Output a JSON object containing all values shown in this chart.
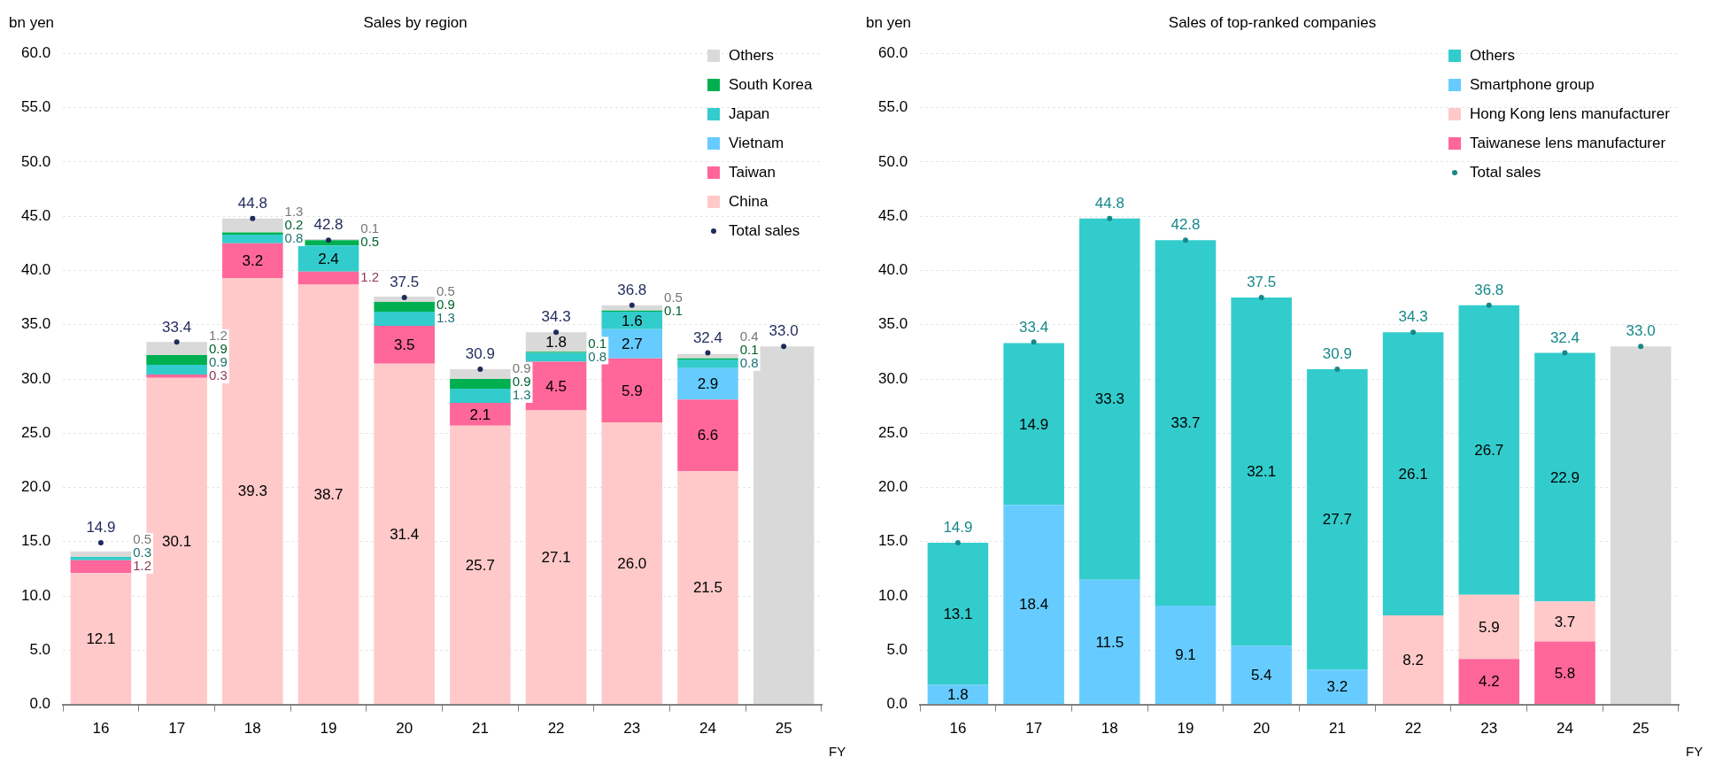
{
  "chart_data": [
    {
      "type": "bar",
      "stacked": true,
      "title": "Sales by region",
      "ylabel": "bn yen",
      "xlabel": "FY",
      "categories": [
        "16",
        "17",
        "18",
        "19",
        "20",
        "21",
        "22",
        "23",
        "24",
        "25"
      ],
      "ylim": [
        0,
        60
      ],
      "yticks": [
        {
          "value": 0,
          "label": "0.0"
        },
        {
          "value": 5,
          "label": "5.0"
        },
        {
          "value": 10,
          "label": "10.0"
        },
        {
          "value": 15,
          "label": "15.0"
        },
        {
          "value": 20,
          "label": "20.0"
        },
        {
          "value": 25,
          "label": "25.0"
        },
        {
          "value": 30,
          "label": "30.0"
        },
        {
          "value": 35,
          "label": "35.0"
        },
        {
          "value": 40,
          "label": "40.0"
        },
        {
          "value": 45,
          "label": "45.0"
        },
        {
          "value": 50,
          "label": "50.0"
        },
        {
          "value": 55,
          "label": "55.0"
        },
        {
          "value": 60,
          "label": "60.0"
        }
      ],
      "grid": "y",
      "legend": "top right",
      "marker": "circle",
      "series": [
        {
          "name": "China",
          "color": "#ffc9c9",
          "values": [
            12.1,
            30.1,
            39.3,
            38.7,
            31.4,
            25.7,
            27.1,
            26.0,
            21.5,
            null
          ],
          "value_labels": [
            "12.1",
            "30.1",
            "39.3",
            "38.7",
            "31.4",
            "25.7",
            "27.1",
            "26.0",
            "21.5",
            null
          ]
        },
        {
          "name": "Taiwan",
          "color": "#ff6699",
          "values": [
            1.2,
            0.3,
            3.2,
            1.2,
            3.5,
            2.1,
            4.5,
            5.9,
            6.6,
            null
          ],
          "value_labels": [
            "1.2",
            "0.3",
            "3.2",
            "1.2",
            "3.5",
            "2.1",
            "4.5",
            "5.9",
            "6.6",
            null
          ]
        },
        {
          "name": "Vietnam",
          "color": "#66ccff",
          "values": [
            null,
            null,
            null,
            null,
            null,
            null,
            null,
            2.7,
            2.9,
            null
          ],
          "value_labels": [
            null,
            null,
            null,
            null,
            null,
            null,
            null,
            "2.7",
            "2.9",
            null
          ]
        },
        {
          "name": "Japan",
          "color": "#33cccc",
          "values": [
            0.3,
            0.9,
            0.8,
            2.4,
            1.3,
            1.3,
            0.8,
            1.6,
            0.8,
            null
          ],
          "value_labels": [
            "0.3",
            "0.9",
            "0.8",
            "2.4",
            "1.3",
            "1.3",
            "0.8",
            "1.6",
            "0.8",
            null
          ]
        },
        {
          "name": "South Korea",
          "color": "#00b050",
          "values": [
            null,
            0.9,
            0.2,
            0.5,
            0.9,
            0.9,
            0.1,
            0.1,
            0.1,
            null
          ],
          "value_labels": [
            null,
            "0.9",
            "0.2",
            "0.5",
            "0.9",
            "0.9",
            "0.1",
            "0.1",
            "0.1",
            null
          ]
        },
        {
          "name": "Others",
          "color": "#d9d9d9",
          "values": [
            0.5,
            1.2,
            1.3,
            0.1,
            0.5,
            0.9,
            1.8,
            0.5,
            0.4,
            null
          ],
          "value_labels": [
            "0.5",
            "1.2",
            "1.3",
            "0.1",
            "0.5",
            "0.9",
            "1.8",
            "0.5",
            "0.4",
            null
          ]
        },
        {
          "color": "#d9d9d9",
          "values": [
            null,
            null,
            null,
            null,
            null,
            null,
            null,
            null,
            null,
            33.0
          ]
        },
        {
          "type": "scatter",
          "name": "Total sales",
          "color": "#1f2a5c",
          "x": [
            "16",
            "17",
            "18",
            "19",
            "20",
            "21",
            "22",
            "23",
            "24",
            "25"
          ],
          "values": [
            14.9,
            33.4,
            44.8,
            42.8,
            37.5,
            30.9,
            34.3,
            36.8,
            32.4,
            33.0
          ],
          "value_labels": [
            "14.9",
            "33.4",
            "44.8",
            "42.8",
            "37.5",
            "30.9",
            "34.3",
            "36.8",
            "32.4",
            "33.0"
          ]
        }
      ]
    },
    {
      "type": "bar",
      "stacked": true,
      "title": "Sales of top-ranked companies",
      "ylabel": "bn yen",
      "xlabel": "FY",
      "categories": [
        "16",
        "17",
        "18",
        "19",
        "20",
        "21",
        "22",
        "23",
        "24",
        "25"
      ],
      "ylim": [
        0,
        60
      ],
      "yticks": [
        {
          "value": 0,
          "label": "0.0"
        },
        {
          "value": 5,
          "label": "5.0"
        },
        {
          "value": 10,
          "label": "10.0"
        },
        {
          "value": 15,
          "label": "15.0"
        },
        {
          "value": 20,
          "label": "20.0"
        },
        {
          "value": 25,
          "label": "25.0"
        },
        {
          "value": 30,
          "label": "30.0"
        },
        {
          "value": 35,
          "label": "35.0"
        },
        {
          "value": 40,
          "label": "40.0"
        },
        {
          "value": 45,
          "label": "45.0"
        },
        {
          "value": 50,
          "label": "50.0"
        },
        {
          "value": 55,
          "label": "55.0"
        },
        {
          "value": 60,
          "label": "60.0"
        }
      ],
      "grid": "y",
      "legend": "top right",
      "marker": "circle",
      "series": [
        {
          "name": "Taiwanese lens manufacturer",
          "color": "#ff6699",
          "values": [
            null,
            null,
            null,
            null,
            null,
            null,
            null,
            4.2,
            5.8,
            null
          ],
          "value_labels": [
            null,
            null,
            null,
            null,
            null,
            null,
            null,
            "4.2",
            "5.8",
            null
          ]
        },
        {
          "name": "Hong Kong lens manufacturer",
          "color": "#ffc9c9",
          "values": [
            null,
            null,
            null,
            null,
            null,
            null,
            8.2,
            5.9,
            3.7,
            null
          ],
          "value_labels": [
            null,
            null,
            null,
            null,
            null,
            null,
            "8.2",
            "5.9",
            "3.7",
            null
          ]
        },
        {
          "name": "Smartphone group",
          "color": "#66ccff",
          "values": [
            1.8,
            18.4,
            11.5,
            9.1,
            5.4,
            3.2,
            null,
            null,
            null,
            null
          ],
          "value_labels": [
            "1.8",
            "18.4",
            "11.5",
            "9.1",
            "5.4",
            "3.2",
            null,
            null,
            null,
            null
          ]
        },
        {
          "name": "Others",
          "color": "#33cccc",
          "values": [
            13.1,
            14.9,
            33.3,
            33.7,
            32.1,
            27.7,
            26.1,
            26.7,
            22.9,
            null
          ],
          "value_labels": [
            "13.1",
            "14.9",
            "33.3",
            "33.7",
            "32.1",
            "27.7",
            "26.1",
            "26.7",
            "22.9",
            null
          ]
        },
        {
          "color": "#d9d9d9",
          "values": [
            null,
            null,
            null,
            null,
            null,
            null,
            null,
            null,
            null,
            33.0
          ]
        },
        {
          "type": "scatter",
          "name": "Total sales",
          "color": "#17888a",
          "x": [
            "16",
            "17",
            "18",
            "19",
            "20",
            "21",
            "22",
            "23",
            "24",
            "25"
          ],
          "values": [
            14.9,
            33.4,
            44.8,
            42.8,
            37.5,
            30.9,
            34.3,
            36.8,
            32.4,
            33.0
          ],
          "value_labels": [
            "14.9",
            "33.4",
            "44.8",
            "42.8",
            "37.5",
            "30.9",
            "34.3",
            "36.8",
            "32.4",
            "33.0"
          ]
        }
      ]
    }
  ]
}
